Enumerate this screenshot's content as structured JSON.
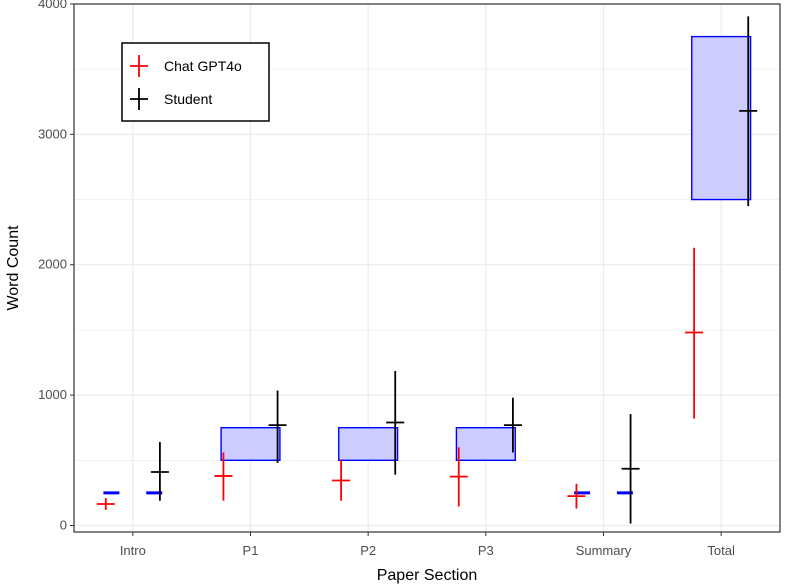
{
  "chart_data": {
    "type": "boxplot",
    "title": "",
    "xlabel": "Paper Section",
    "ylabel": "Word Count",
    "ylim": [
      -50,
      4000
    ],
    "yticks": [
      0,
      1000,
      2000,
      3000,
      4000
    ],
    "grid": true,
    "legend_position": "top-left",
    "categories": [
      "Intro",
      "P1",
      "P2",
      "P3",
      "Summary",
      "Total"
    ],
    "target_ranges": [
      {
        "category": "Intro",
        "min": 250,
        "max": 250
      },
      {
        "category": "P1",
        "min": 500,
        "max": 750
      },
      {
        "category": "P2",
        "min": 500,
        "max": 750
      },
      {
        "category": "P3",
        "min": 500,
        "max": 750
      },
      {
        "category": "Summary",
        "min": 250,
        "max": 250
      },
      {
        "category": "Total",
        "min": 2500,
        "max": 3750
      }
    ],
    "series": [
      {
        "name": "Chat GPT4o",
        "color": "#ff0000",
        "points": [
          {
            "category": "Intro",
            "mean": 165,
            "low": 120,
            "high": 210
          },
          {
            "category": "P1",
            "mean": 380,
            "low": 190,
            "high": 560
          },
          {
            "category": "P2",
            "mean": 345,
            "low": 190,
            "high": 500
          },
          {
            "category": "P3",
            "mean": 375,
            "low": 145,
            "high": 600
          },
          {
            "category": "Summary",
            "mean": 225,
            "low": 130,
            "high": 320
          },
          {
            "category": "Total",
            "mean": 1480,
            "low": 820,
            "high": 2130
          }
        ]
      },
      {
        "name": "Student",
        "color": "#000000",
        "points": [
          {
            "category": "Intro",
            "mean": 410,
            "low": 190,
            "high": 640
          },
          {
            "category": "P1",
            "mean": 770,
            "low": 480,
            "high": 1035
          },
          {
            "category": "P2",
            "mean": 790,
            "low": 390,
            "high": 1185
          },
          {
            "category": "P3",
            "mean": 770,
            "low": 560,
            "high": 980
          },
          {
            "category": "Summary",
            "mean": 435,
            "low": 15,
            "high": 855
          },
          {
            "category": "Total",
            "mean": 3180,
            "low": 2450,
            "high": 3905
          }
        ]
      }
    ],
    "colors": {
      "target_fill": "#ccccff",
      "target_stroke": "#0000ff",
      "grid": "#ebebeb",
      "panel_border": "#333333"
    }
  }
}
